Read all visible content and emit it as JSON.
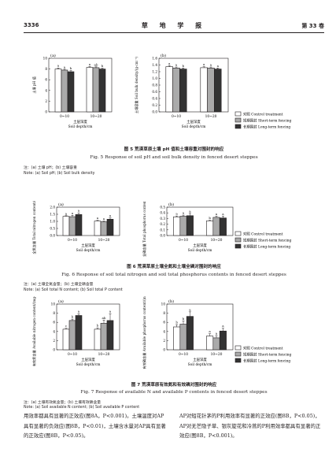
{
  "header": {
    "page_number": "3336",
    "journal_title": "草 地 学 报",
    "volume": "第 33 卷"
  },
  "colors": {
    "control": "#ffffff",
    "short_term": "#aaaaaa",
    "long_term": "#333333",
    "outline": "#231f20"
  },
  "legend": {
    "labels": [
      "对照 Control treatment",
      "短期围封 Short-term fencing",
      "长期围封 Long-term fencing"
    ]
  },
  "figures": [
    {
      "id": "fig5",
      "caption_cn": "图 5   荒漠草原土壤 pH 值和土壤容重对围封的响应",
      "caption_en": "Fig. 5   Response of soil pH and soil bulk density in fenced desert steppes",
      "note": "注：(a) 土壤 pH；(b) 土壤容重",
      "note_en": "Note: (a) Soil pH; (b) Soil bulk density"
    },
    {
      "id": "fig6",
      "caption_cn": "图 6   荒漠草原土壤全氮和土壤全磷对围封的响应",
      "caption_en": "Fig. 6   Response of soil total nitrogen and soil total phosphorus contents in fenced desert steppes",
      "note": "注：(a) 土壤全氮含量；(b) 土壤全磷含量",
      "note_en": "Note: (a) Soil total N content; (b) Soil total P content"
    },
    {
      "id": "fig7",
      "caption_cn": "图 7   荒漠草原有效氮和有效磷对围封的响应",
      "caption_en": "Fig. 7   Response of available N and available P contents in fenced desert steppes",
      "note": "注：(a) 土壤有效氮含量；(b) 土壤有效磷含量",
      "note_en": "Note: (a) Soil available N content; (b) Soil available P content"
    }
  ],
  "chart_data": [
    {
      "panel": "(a)",
      "type": "bar",
      "ylabel": "土壤 pH 值",
      "xlabel_cn": "土层深度",
      "xlabel_en": "Soil depth/cm",
      "categories": [
        "0~10",
        "10~20"
      ],
      "ylim": [
        0,
        10
      ],
      "yticks": [
        0,
        2,
        4,
        6,
        8,
        10
      ],
      "series": [
        {
          "name": "对照 Control treatment",
          "values": [
            8.0,
            8.3
          ],
          "err": [
            0.2,
            0.15
          ],
          "letters": [
            "a",
            "a"
          ]
        },
        {
          "name": "短期围封 Short-term fencing",
          "values": [
            7.8,
            8.25
          ],
          "err": [
            0.15,
            0.15
          ],
          "letters": [
            "a",
            "ab"
          ]
        },
        {
          "name": "长期围封 Long-term fencing",
          "values": [
            7.5,
            8.0
          ],
          "err": [
            0.2,
            0.15
          ],
          "letters": [
            "b",
            "b"
          ]
        }
      ]
    },
    {
      "panel": "(b)",
      "type": "bar",
      "ylabel": "土壤容重 Soil bulk density/(g·cm⁻³)",
      "xlabel_cn": "土层深度",
      "xlabel_en": "Soil depth/cm",
      "categories": [
        "0~10",
        "10~20"
      ],
      "ylim": [
        0,
        1.6
      ],
      "yticks": [
        0,
        0.2,
        0.4,
        0.6,
        0.8,
        1.0,
        1.2,
        1.4,
        1.6
      ],
      "series": [
        {
          "name": "对照 Control treatment",
          "values": [
            1.35,
            1.32
          ],
          "err": [
            0.03,
            0.03
          ],
          "letters": [
            "a",
            "a"
          ]
        },
        {
          "name": "短期围封 Short-term fencing",
          "values": [
            1.31,
            1.31
          ],
          "err": [
            0.03,
            0.03
          ],
          "letters": [
            "a",
            "a"
          ]
        },
        {
          "name": "长期围封 Long-term fencing",
          "values": [
            1.28,
            1.28
          ],
          "err": [
            0.03,
            0.03
          ],
          "letters": [
            "b",
            "a"
          ]
        }
      ]
    },
    {
      "panel": "(a)",
      "type": "bar",
      "ylabel": "全氮含量 Total nitrogen content/(g·kg⁻¹)",
      "xlabel_cn": "土层深度",
      "xlabel_en": "Soil depth/cm",
      "categories": [
        "0~10",
        "10~20"
      ],
      "ylim": [
        0,
        2.0
      ],
      "yticks": [
        0,
        0.5,
        1.0,
        1.5,
        2.0
      ],
      "series": [
        {
          "name": "对照 Control treatment",
          "values": [
            1.35,
            1.02
          ],
          "err": [
            0.05,
            0.05
          ],
          "letters": [
            "a",
            "a"
          ]
        },
        {
          "name": "短期围封 Short-term fencing",
          "values": [
            1.33,
            0.97
          ],
          "err": [
            0.1,
            0.05
          ],
          "letters": [
            "a",
            "a"
          ]
        },
        {
          "name": "长期围封 Long-term fencing",
          "values": [
            1.48,
            1.15
          ],
          "err": [
            0.12,
            0.1
          ],
          "letters": [
            "a",
            "a"
          ]
        }
      ]
    },
    {
      "panel": "(b)",
      "type": "bar",
      "ylabel": "全磷含量 Total phosphorus content/(g·kg⁻¹)",
      "xlabel_cn": "土层深度",
      "xlabel_en": "Soil depth/cm",
      "categories": [
        "0~10",
        "10~20"
      ],
      "ylim": [
        0,
        0.5
      ],
      "yticks": [
        0,
        0.1,
        0.2,
        0.3,
        0.4,
        0.5
      ],
      "series": [
        {
          "name": "对照 Control treatment",
          "values": [
            0.33,
            0.26
          ],
          "err": [
            0.015,
            0.01
          ],
          "letters": [
            "a",
            "b"
          ]
        },
        {
          "name": "短期围封 Short-term fencing",
          "values": [
            0.34,
            0.32
          ],
          "err": [
            0.02,
            0.02
          ],
          "letters": [
            "a",
            "a"
          ]
        },
        {
          "name": "长期围封 Long-term fencing",
          "values": [
            0.35,
            0.31
          ],
          "err": [
            0.04,
            0.03
          ],
          "letters": [
            "a",
            "a"
          ]
        }
      ]
    },
    {
      "panel": "(a)",
      "type": "bar",
      "ylabel": "有效氮含量 Available nitrogen content/(mg·kg⁻¹)",
      "xlabel_cn": "土层深度",
      "xlabel_en": "Soil depth/cm",
      "categories": [
        "0~10",
        "10~20"
      ],
      "ylim": [
        0,
        10
      ],
      "yticks": [
        0,
        2,
        4,
        6,
        8,
        10
      ],
      "series": [
        {
          "name": "对照 Control treatment",
          "values": [
            4.5,
            4.5
          ],
          "err": [
            0.2,
            0.3
          ],
          "letters": [
            "c",
            "b"
          ]
        },
        {
          "name": "短期围封 Short-term fencing",
          "values": [
            6.4,
            5.8
          ],
          "err": [
            0.3,
            0.7
          ],
          "letters": [
            "b",
            "ab"
          ]
        },
        {
          "name": "长期围封 Long-term fencing",
          "values": [
            7.5,
            6.4
          ],
          "err": [
            0.4,
            1.5
          ],
          "letters": [
            "a",
            "a"
          ]
        }
      ]
    },
    {
      "panel": "(b)",
      "type": "bar",
      "ylabel": "有效磷含量 Available phosphorus content/(mg·kg⁻¹)",
      "xlabel_cn": "土层深度",
      "xlabel_en": "Soil depth/cm",
      "categories": [
        "0~10",
        "10~20"
      ],
      "ylim": [
        0,
        10
      ],
      "yticks": [
        0,
        2,
        4,
        6,
        8,
        10
      ],
      "series": [
        {
          "name": "对照 Control treatment",
          "values": [
            5.0,
            3.0
          ],
          "err": [
            0.5,
            0.5
          ],
          "letters": [
            "b",
            "a"
          ]
        },
        {
          "name": "短期围封 Short-term fencing",
          "values": [
            5.6,
            2.6
          ],
          "err": [
            0.7,
            0.5
          ],
          "letters": [
            "b",
            "a"
          ]
        },
        {
          "name": "长期围封 Long-term fencing",
          "values": [
            7.3,
            4.1
          ],
          "err": [
            1.0,
            0.6
          ],
          "letters": [
            "a",
            "a"
          ]
        }
      ]
    }
  ],
  "body_text": {
    "left": "用效率都具有显著的正效应(图8A，P<0.001)。土壤温度对AP具有显著的负效应(图8B，P<0.01)，土壤含水量对AP具有显著的正效应(图8B，P<0.05)。",
    "right": "AP对短花针茅的P利用效率有显著的正效应(图8B，P<0.05)，AP对无芒隐子草、银灰旋花和冷蒿的P利用效率都具有显著的正效应(图8B，P<0.001)。"
  }
}
